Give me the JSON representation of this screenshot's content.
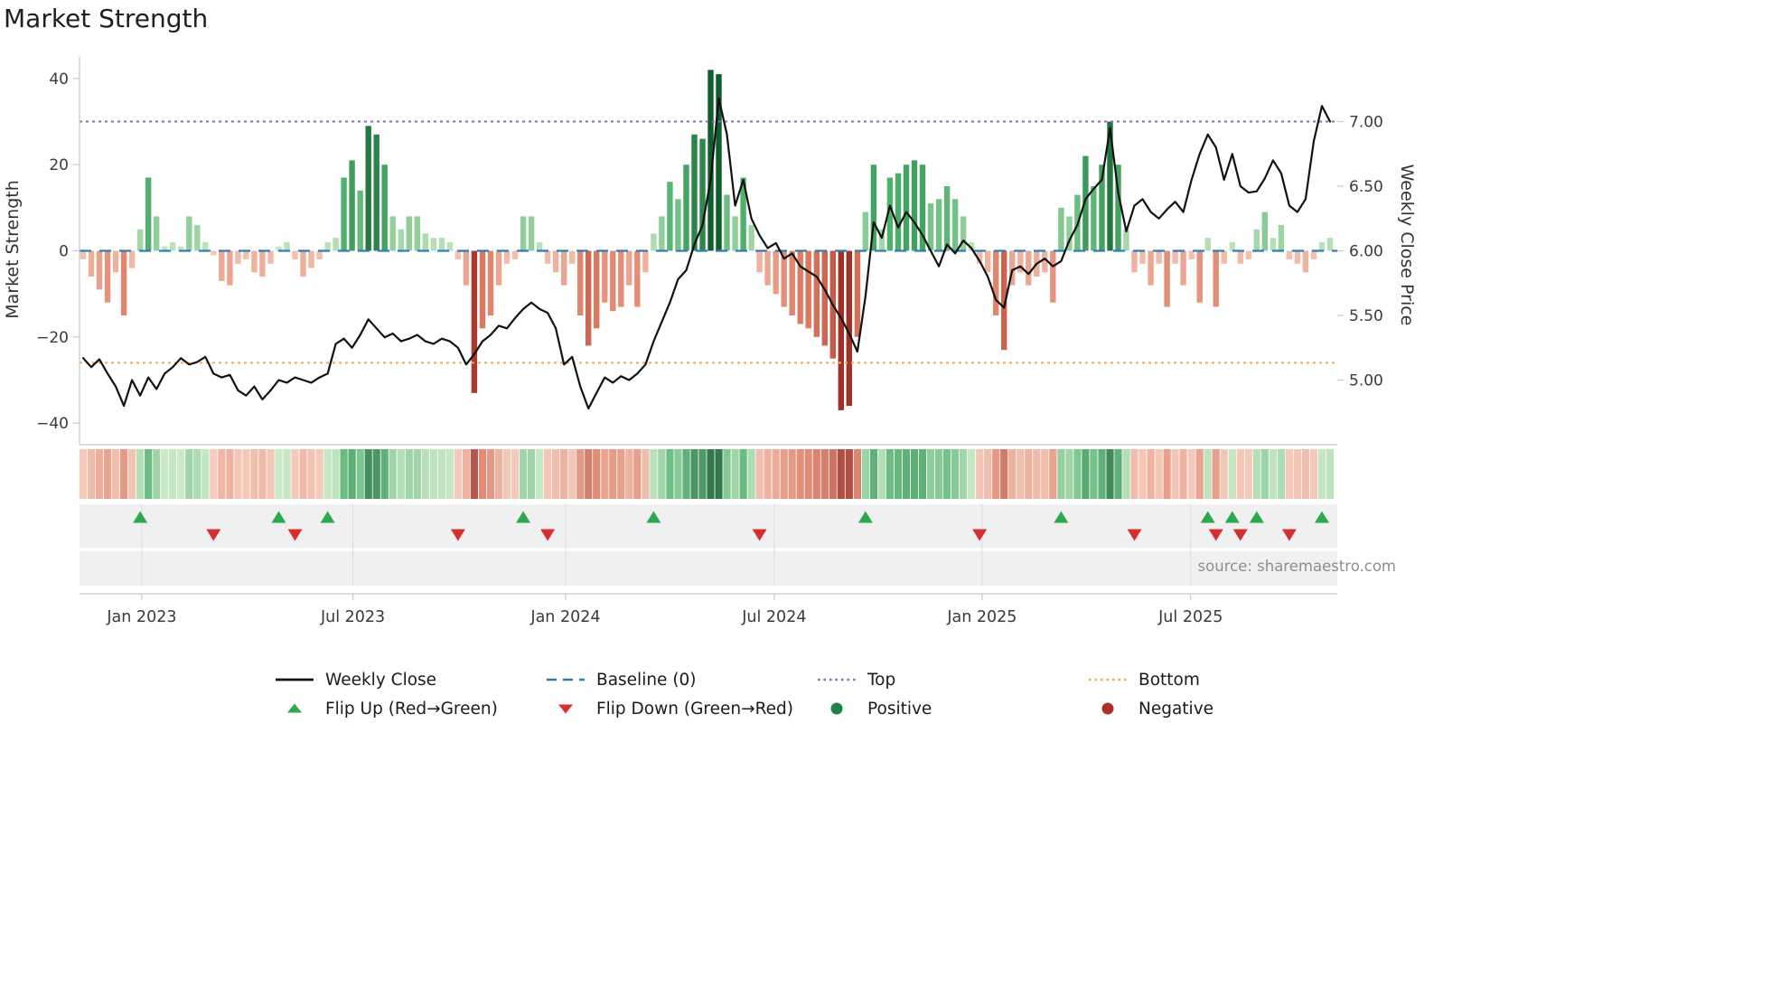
{
  "title": "Market Strength",
  "source_text": "source: sharemaestro.com",
  "axes": {
    "left_label": "Market Strength",
    "right_label": "Weekly Close Price",
    "left_tick_labels": [
      "40",
      "20",
      "0",
      "−20",
      "−40"
    ],
    "left_tick_values": [
      40,
      20,
      0,
      -20,
      -40
    ],
    "right_tick_labels": [
      "7.00",
      "6.50",
      "6.00",
      "5.50",
      "5.00"
    ],
    "right_tick_values": [
      30,
      15,
      0,
      -15,
      -30
    ],
    "x_tick_labels": [
      "Jan 2023",
      "Jul 2023",
      "Jan 2024",
      "Jul 2024",
      "Jan 2025",
      "Jul 2025"
    ],
    "x_tick_week_index": [
      7.2,
      33.1,
      59.2,
      84.8,
      110.3,
      135.9
    ]
  },
  "legend": {
    "items": [
      {
        "label": "Weekly Close",
        "swatch": "line-solid",
        "color_key": "price_line"
      },
      {
        "label": "Baseline (0)",
        "swatch": "line-dashed",
        "color_key": "baseline"
      },
      {
        "label": "Top",
        "swatch": "line-dotted",
        "color_key": "top"
      },
      {
        "label": "Bottom",
        "swatch": "line-dotted",
        "color_key": "bottom"
      },
      {
        "label": "Flip Up (Red→Green)",
        "swatch": "triangle-up",
        "color_key": "flip_up"
      },
      {
        "label": "Flip Down (Green→Red)",
        "swatch": "triangle-down",
        "color_key": "flip_down"
      },
      {
        "label": "Positive",
        "swatch": "circle",
        "color_key": "positive_marker"
      },
      {
        "label": "Negative",
        "swatch": "circle",
        "color_key": "negative_marker"
      }
    ]
  },
  "colors": {
    "positive_scale": [
      "#c9e8c2",
      "#4caf6a",
      "#0f5f2b"
    ],
    "negative_scale": [
      "#f6c9b8",
      "#dd7a60",
      "#a33026"
    ],
    "price_line": "#111111",
    "baseline": "#2e7eb3",
    "top": "#9467bd",
    "bottom": "#f2a65a",
    "flip_up": "#2ca84e",
    "flip_down": "#d62f2f",
    "positive_marker": "#1d8348",
    "negative_marker": "#a93226",
    "band_bg": "#f0f0f0",
    "grid_band": "#dcdcdc",
    "spine": "#c9c9c9"
  },
  "chart_data": {
    "type": "bar",
    "subtype": "weekly strength bars with price line overlay, heatmap strip and flip markers",
    "title": "Market Strength",
    "ylabel_left": "Market Strength",
    "ylabel_right": "Weekly Close Price",
    "left_ylim": [
      -45,
      45
    ],
    "right_price_ticks": [
      7.0,
      6.5,
      6.0,
      5.5,
      5.0
    ],
    "price_to_strength_mapping": "strength = (price − 6.00) × 30",
    "baseline_level": 0,
    "top_level": 30,
    "bottom_level": -26,
    "weeks": 154,
    "x_start": "Nov 2022",
    "x_end": "Oct 2025",
    "strength": [
      -2,
      -6,
      -9,
      -12,
      -5,
      -15,
      -4,
      5,
      17,
      8,
      1,
      2,
      1,
      8,
      6,
      2,
      -1,
      -7,
      -8,
      -3,
      -2,
      -5,
      -6,
      -3,
      1,
      2,
      -2,
      -6,
      -4,
      -2,
      2,
      3,
      17,
      21,
      14,
      29,
      27,
      20,
      8,
      5,
      8,
      8,
      4,
      3,
      3,
      2,
      -2,
      -8,
      -33,
      -18,
      -15,
      -8,
      -3,
      -2,
      8,
      8,
      2,
      -3,
      -5,
      -8,
      -3,
      -15,
      -22,
      -18,
      -12,
      -14,
      -13,
      -8,
      -13,
      -5,
      4,
      8,
      16,
      12,
      20,
      27,
      26,
      42,
      41,
      13,
      8,
      17,
      6,
      -5,
      -8,
      -10,
      -13,
      -15,
      -17,
      -18,
      -20,
      -22,
      -25,
      -37,
      -36,
      -20,
      9,
      20,
      5,
      17,
      18,
      20,
      21,
      20,
      11,
      12,
      15,
      12,
      8,
      2,
      -3,
      -5,
      -15,
      -23,
      -8,
      -5,
      -8,
      -6,
      -5,
      -12,
      10,
      8,
      13,
      22,
      15,
      20,
      30,
      20,
      5,
      -5,
      -3,
      -8,
      -3,
      -13,
      -3,
      -8,
      -2,
      -12,
      3,
      -13,
      -3,
      2,
      -3,
      -2,
      5,
      9,
      3,
      6,
      -2,
      -3,
      -5,
      -2,
      2,
      3
    ],
    "weekly_close": [
      5.17,
      5.1,
      5.16,
      5.05,
      4.95,
      4.8,
      5.0,
      4.88,
      5.02,
      4.93,
      5.05,
      5.1,
      5.17,
      5.12,
      5.14,
      5.18,
      5.05,
      5.02,
      5.04,
      4.92,
      4.88,
      4.95,
      4.85,
      4.92,
      5.0,
      4.98,
      5.02,
      5.0,
      4.98,
      5.02,
      5.05,
      5.28,
      5.32,
      5.25,
      5.35,
      5.47,
      5.4,
      5.33,
      5.36,
      5.3,
      5.32,
      5.35,
      5.3,
      5.28,
      5.32,
      5.3,
      5.25,
      5.12,
      5.2,
      5.3,
      5.35,
      5.42,
      5.4,
      5.48,
      5.55,
      5.6,
      5.55,
      5.52,
      5.4,
      5.12,
      5.18,
      4.95,
      4.78,
      4.9,
      5.02,
      4.98,
      5.03,
      5.0,
      5.05,
      5.12,
      5.3,
      5.45,
      5.6,
      5.78,
      5.85,
      6.05,
      6.2,
      6.55,
      7.18,
      6.9,
      6.35,
      6.55,
      6.25,
      6.12,
      6.02,
      6.06,
      5.94,
      5.98,
      5.88,
      5.84,
      5.8,
      5.7,
      5.58,
      5.48,
      5.36,
      5.22,
      5.65,
      6.22,
      6.1,
      6.35,
      6.18,
      6.3,
      6.22,
      6.12,
      6.0,
      5.88,
      6.05,
      5.98,
      6.08,
      6.02,
      5.92,
      5.8,
      5.62,
      5.56,
      5.85,
      5.88,
      5.82,
      5.9,
      5.94,
      5.88,
      5.92,
      6.08,
      6.2,
      6.4,
      6.48,
      6.55,
      6.95,
      6.45,
      6.15,
      6.35,
      6.4,
      6.3,
      6.25,
      6.32,
      6.38,
      6.3,
      6.55,
      6.75,
      6.9,
      6.8,
      6.55,
      6.75,
      6.5,
      6.45,
      6.46,
      6.56,
      6.7,
      6.6,
      6.35,
      6.3,
      6.4,
      6.85,
      7.12,
      7.0
    ],
    "flip_up_weeks": [
      7,
      24,
      30,
      54,
      70,
      96,
      120,
      138,
      141,
      144,
      152
    ],
    "flip_down_weeks": [
      16,
      26,
      46,
      57,
      83,
      110,
      129,
      139,
      142,
      148
    ]
  }
}
